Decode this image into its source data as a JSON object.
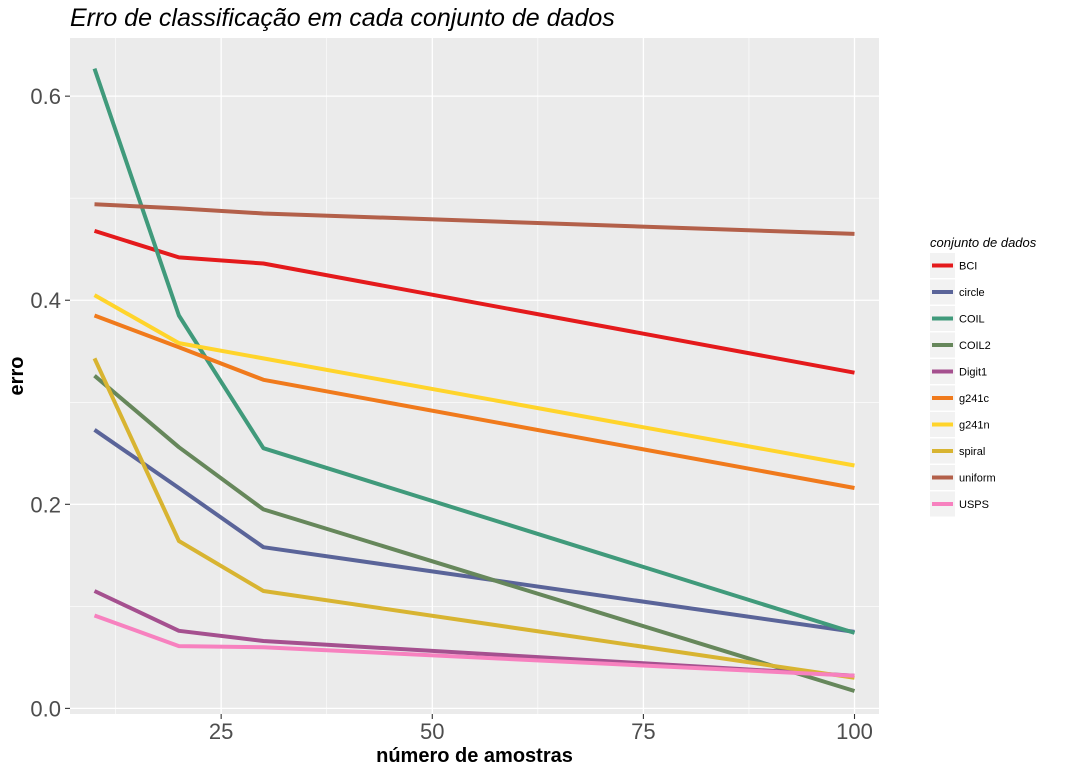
{
  "chart_data": {
    "type": "line",
    "title": "Erro de classificação em cada conjunto de dados",
    "xlabel": "número de amostras",
    "ylabel": "erro",
    "xlim": [
      7.1,
      102.9
    ],
    "ylim": [
      -0.0055,
      0.657
    ],
    "x_ticks": [
      25,
      50,
      75,
      100
    ],
    "x_tick_labels": [
      "25",
      "50",
      "75",
      "100"
    ],
    "y_ticks": [
      0.0,
      0.2,
      0.4,
      0.6
    ],
    "y_tick_labels": [
      "0.0",
      "0.2",
      "0.4",
      "0.6"
    ],
    "grid": true,
    "legend_title": "conjunto de dados",
    "legend_position": "right",
    "x": [
      10,
      20,
      30,
      100
    ],
    "series": [
      {
        "name": "BCI",
        "color": "#e41a1c",
        "values": [
          0.468,
          0.442,
          0.436,
          0.329
        ]
      },
      {
        "name": "circle",
        "color": "#5a6499",
        "values": [
          0.273,
          0.216,
          0.158,
          0.075
        ]
      },
      {
        "name": "COIL",
        "color": "#409a7b",
        "values": [
          0.627,
          0.385,
          0.255,
          0.074
        ]
      },
      {
        "name": "COIL2",
        "color": "#66875b",
        "values": [
          0.326,
          0.256,
          0.195,
          0.017
        ]
      },
      {
        "name": "Digit1",
        "color": "#a5508f",
        "values": [
          0.115,
          0.076,
          0.066,
          0.032
        ]
      },
      {
        "name": "g241c",
        "color": "#f07a1c",
        "values": [
          0.385,
          0.354,
          0.322,
          0.216
        ]
      },
      {
        "name": "g241n",
        "color": "#ffd42b",
        "values": [
          0.405,
          0.358,
          0.343,
          0.238
        ]
      },
      {
        "name": "spiral",
        "color": "#d8b431",
        "values": [
          0.343,
          0.164,
          0.115,
          0.03
        ]
      },
      {
        "name": "uniform",
        "color": "#b3604a",
        "values": [
          0.494,
          0.49,
          0.485,
          0.465
        ]
      },
      {
        "name": "USPS",
        "color": "#f781bf",
        "values": [
          0.091,
          0.061,
          0.06,
          0.032
        ]
      }
    ]
  }
}
